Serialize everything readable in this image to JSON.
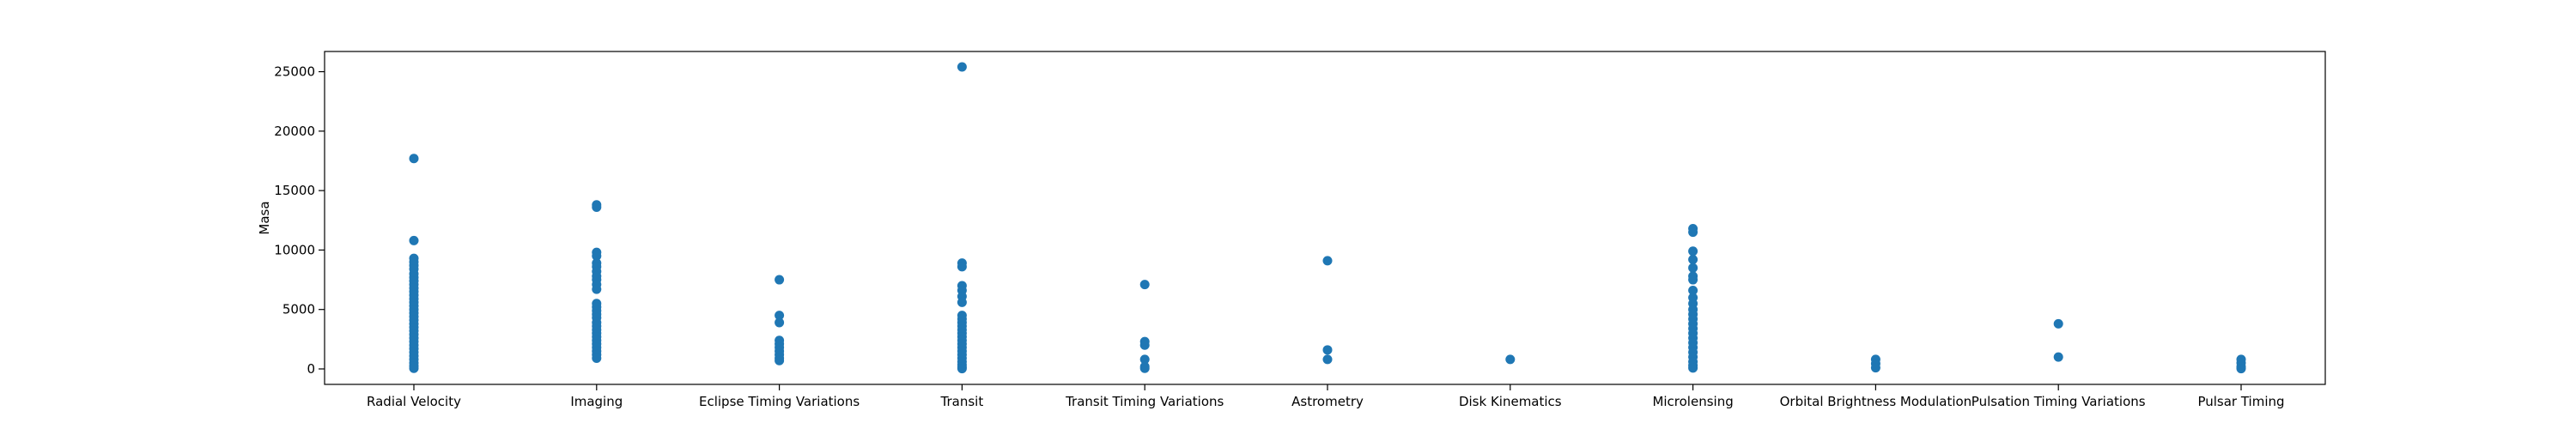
{
  "chart_data": {
    "type": "scatter",
    "title": "",
    "xlabel": "",
    "ylabel": "Masa",
    "ylim": [
      -1300,
      26700
    ],
    "grid": false,
    "legend": "none",
    "marker_color": "#1f77b4",
    "categories": [
      "Radial Velocity",
      "Imaging",
      "Eclipse Timing Variations",
      "Transit",
      "Transit Timing Variations",
      "Astrometry",
      "Disk Kinematics",
      "Microlensing",
      "Orbital Brightness Modulation",
      "Pulsation Timing Variations",
      "Pulsar Timing"
    ],
    "y_ticks": [
      0,
      5000,
      10000,
      15000,
      20000,
      25000
    ],
    "y_tick_labels": [
      "0",
      "5000",
      "10000",
      "15000",
      "20000",
      "25000"
    ],
    "series": [
      {
        "points": [
          {
            "x": "Radial Velocity",
            "y": 17700
          },
          {
            "x": "Radial Velocity",
            "y": 10800
          },
          {
            "x": "Radial Velocity",
            "y": 9300
          },
          {
            "x": "Radial Velocity",
            "y": 9000
          },
          {
            "x": "Radial Velocity",
            "y": 8700
          },
          {
            "x": "Radial Velocity",
            "y": 8400
          },
          {
            "x": "Radial Velocity",
            "y": 8000
          },
          {
            "x": "Radial Velocity",
            "y": 7700
          },
          {
            "x": "Radial Velocity",
            "y": 7400
          },
          {
            "x": "Radial Velocity",
            "y": 7100
          },
          {
            "x": "Radial Velocity",
            "y": 6800
          },
          {
            "x": "Radial Velocity",
            "y": 6500
          },
          {
            "x": "Radial Velocity",
            "y": 6200
          },
          {
            "x": "Radial Velocity",
            "y": 5900
          },
          {
            "x": "Radial Velocity",
            "y": 5600
          },
          {
            "x": "Radial Velocity",
            "y": 5300
          },
          {
            "x": "Radial Velocity",
            "y": 5000
          },
          {
            "x": "Radial Velocity",
            "y": 4700
          },
          {
            "x": "Radial Velocity",
            "y": 4400
          },
          {
            "x": "Radial Velocity",
            "y": 4100
          },
          {
            "x": "Radial Velocity",
            "y": 3800
          },
          {
            "x": "Radial Velocity",
            "y": 3500
          },
          {
            "x": "Radial Velocity",
            "y": 3200
          },
          {
            "x": "Radial Velocity",
            "y": 2900
          },
          {
            "x": "Radial Velocity",
            "y": 2600
          },
          {
            "x": "Radial Velocity",
            "y": 2300
          },
          {
            "x": "Radial Velocity",
            "y": 2000
          },
          {
            "x": "Radial Velocity",
            "y": 1700
          },
          {
            "x": "Radial Velocity",
            "y": 1400
          },
          {
            "x": "Radial Velocity",
            "y": 1100
          },
          {
            "x": "Radial Velocity",
            "y": 800
          },
          {
            "x": "Radial Velocity",
            "y": 500
          },
          {
            "x": "Radial Velocity",
            "y": 250
          },
          {
            "x": "Radial Velocity",
            "y": 50
          },
          {
            "x": "Imaging",
            "y": 13800
          },
          {
            "x": "Imaging",
            "y": 13600
          },
          {
            "x": "Imaging",
            "y": 9800
          },
          {
            "x": "Imaging",
            "y": 9500
          },
          {
            "x": "Imaging",
            "y": 8900
          },
          {
            "x": "Imaging",
            "y": 8600
          },
          {
            "x": "Imaging",
            "y": 8200
          },
          {
            "x": "Imaging",
            "y": 7800
          },
          {
            "x": "Imaging",
            "y": 7500
          },
          {
            "x": "Imaging",
            "y": 7100
          },
          {
            "x": "Imaging",
            "y": 6700
          },
          {
            "x": "Imaging",
            "y": 5500
          },
          {
            "x": "Imaging",
            "y": 5200
          },
          {
            "x": "Imaging",
            "y": 4900
          },
          {
            "x": "Imaging",
            "y": 4600
          },
          {
            "x": "Imaging",
            "y": 4300
          },
          {
            "x": "Imaging",
            "y": 3900
          },
          {
            "x": "Imaging",
            "y": 3600
          },
          {
            "x": "Imaging",
            "y": 3300
          },
          {
            "x": "Imaging",
            "y": 3000
          },
          {
            "x": "Imaging",
            "y": 2700
          },
          {
            "x": "Imaging",
            "y": 2400
          },
          {
            "x": "Imaging",
            "y": 2100
          },
          {
            "x": "Imaging",
            "y": 1800
          },
          {
            "x": "Imaging",
            "y": 1500
          },
          {
            "x": "Imaging",
            "y": 1200
          },
          {
            "x": "Imaging",
            "y": 900
          },
          {
            "x": "Eclipse Timing Variations",
            "y": 7500
          },
          {
            "x": "Eclipse Timing Variations",
            "y": 4500
          },
          {
            "x": "Eclipse Timing Variations",
            "y": 3900
          },
          {
            "x": "Eclipse Timing Variations",
            "y": 2400
          },
          {
            "x": "Eclipse Timing Variations",
            "y": 2100
          },
          {
            "x": "Eclipse Timing Variations",
            "y": 1800
          },
          {
            "x": "Eclipse Timing Variations",
            "y": 1500
          },
          {
            "x": "Eclipse Timing Variations",
            "y": 1200
          },
          {
            "x": "Eclipse Timing Variations",
            "y": 900
          },
          {
            "x": "Eclipse Timing Variations",
            "y": 700
          },
          {
            "x": "Transit",
            "y": 25400
          },
          {
            "x": "Transit",
            "y": 8900
          },
          {
            "x": "Transit",
            "y": 8600
          },
          {
            "x": "Transit",
            "y": 7000
          },
          {
            "x": "Transit",
            "y": 6600
          },
          {
            "x": "Transit",
            "y": 6100
          },
          {
            "x": "Transit",
            "y": 5600
          },
          {
            "x": "Transit",
            "y": 4500
          },
          {
            "x": "Transit",
            "y": 4200
          },
          {
            "x": "Transit",
            "y": 3900
          },
          {
            "x": "Transit",
            "y": 3600
          },
          {
            "x": "Transit",
            "y": 3300
          },
          {
            "x": "Transit",
            "y": 3000
          },
          {
            "x": "Transit",
            "y": 2700
          },
          {
            "x": "Transit",
            "y": 2400
          },
          {
            "x": "Transit",
            "y": 2100
          },
          {
            "x": "Transit",
            "y": 1800
          },
          {
            "x": "Transit",
            "y": 1500
          },
          {
            "x": "Transit",
            "y": 1200
          },
          {
            "x": "Transit",
            "y": 900
          },
          {
            "x": "Transit",
            "y": 600
          },
          {
            "x": "Transit",
            "y": 350
          },
          {
            "x": "Transit",
            "y": 150
          },
          {
            "x": "Transit",
            "y": 30
          },
          {
            "x": "Transit Timing Variations",
            "y": 7100
          },
          {
            "x": "Transit Timing Variations",
            "y": 2300
          },
          {
            "x": "Transit Timing Variations",
            "y": 2000
          },
          {
            "x": "Transit Timing Variations",
            "y": 800
          },
          {
            "x": "Transit Timing Variations",
            "y": 200
          },
          {
            "x": "Transit Timing Variations",
            "y": 50
          },
          {
            "x": "Astrometry",
            "y": 9100
          },
          {
            "x": "Astrometry",
            "y": 1600
          },
          {
            "x": "Astrometry",
            "y": 800
          },
          {
            "x": "Disk Kinematics",
            "y": 800
          },
          {
            "x": "Microlensing",
            "y": 11800
          },
          {
            "x": "Microlensing",
            "y": 11500
          },
          {
            "x": "Microlensing",
            "y": 9900
          },
          {
            "x": "Microlensing",
            "y": 9200
          },
          {
            "x": "Microlensing",
            "y": 8500
          },
          {
            "x": "Microlensing",
            "y": 7800
          },
          {
            "x": "Microlensing",
            "y": 7500
          },
          {
            "x": "Microlensing",
            "y": 6600
          },
          {
            "x": "Microlensing",
            "y": 6000
          },
          {
            "x": "Microlensing",
            "y": 5500
          },
          {
            "x": "Microlensing",
            "y": 5000
          },
          {
            "x": "Microlensing",
            "y": 4600
          },
          {
            "x": "Microlensing",
            "y": 4200
          },
          {
            "x": "Microlensing",
            "y": 3800
          },
          {
            "x": "Microlensing",
            "y": 3400
          },
          {
            "x": "Microlensing",
            "y": 3000
          },
          {
            "x": "Microlensing",
            "y": 2600
          },
          {
            "x": "Microlensing",
            "y": 2200
          },
          {
            "x": "Microlensing",
            "y": 1800
          },
          {
            "x": "Microlensing",
            "y": 1400
          },
          {
            "x": "Microlensing",
            "y": 1000
          },
          {
            "x": "Microlensing",
            "y": 600
          },
          {
            "x": "Microlensing",
            "y": 300
          },
          {
            "x": "Microlensing",
            "y": 80
          },
          {
            "x": "Orbital Brightness Modulation",
            "y": 800
          },
          {
            "x": "Orbital Brightness Modulation",
            "y": 450
          },
          {
            "x": "Orbital Brightness Modulation",
            "y": 100
          },
          {
            "x": "Pulsation Timing Variations",
            "y": 3800
          },
          {
            "x": "Pulsation Timing Variations",
            "y": 1000
          },
          {
            "x": "Pulsar Timing",
            "y": 800
          },
          {
            "x": "Pulsar Timing",
            "y": 500
          },
          {
            "x": "Pulsar Timing",
            "y": 200
          },
          {
            "x": "Pulsar Timing",
            "y": 30
          }
        ]
      }
    ]
  }
}
